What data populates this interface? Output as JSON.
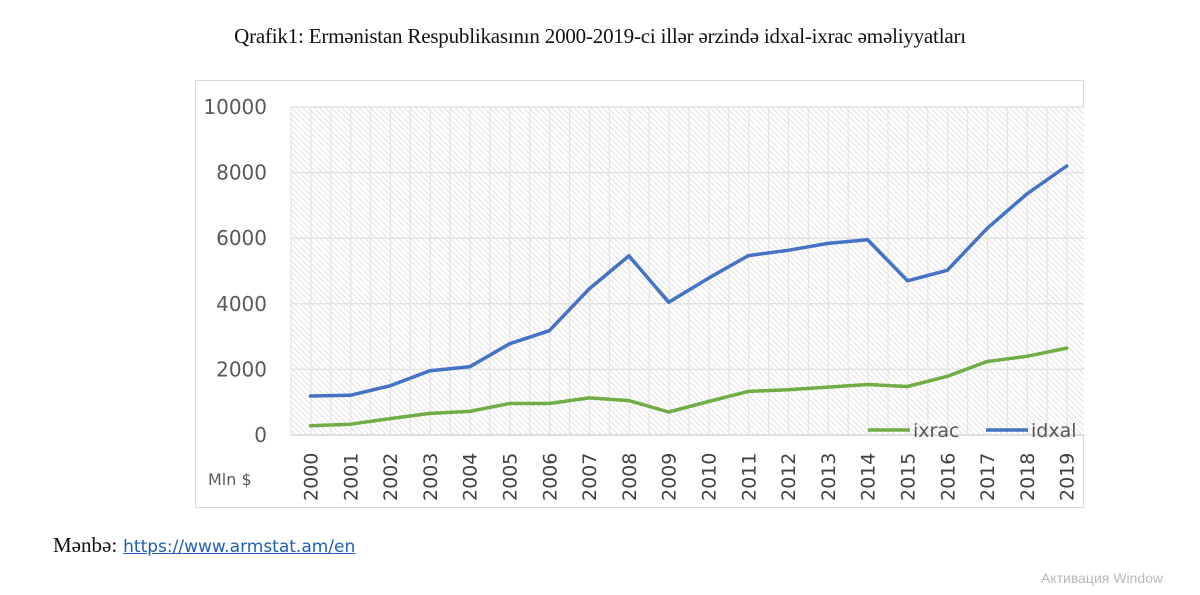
{
  "title": "Qrafik1: Ermənistan Respublikasının 2000-2019-ci illər ərzində idxal-ixrac əməliyyatları",
  "footer": {
    "source_label": "Mənbə:",
    "source_link": "https://www.armstat.am/en"
  },
  "watermark": "Активация Window",
  "chart_data": {
    "type": "line",
    "title": "Qrafik1: Ermənistan Respublikasının 2000-2019-ci illər ərzində idxal-ixrac əməliyyatları",
    "xlabel": "",
    "ylabel": "Mln $",
    "unit_label": "Mln $",
    "ylim": [
      0,
      10000
    ],
    "yticks": [
      0,
      2000,
      4000,
      6000,
      8000,
      10000
    ],
    "ytick_labels": [
      "0",
      "2000",
      "4000",
      "6000",
      "8000",
      "10000"
    ],
    "categories": [
      "2000",
      "2001",
      "2002",
      "2003",
      "2004",
      "2005",
      "2006",
      "2007",
      "2008",
      "2009",
      "2010",
      "2011",
      "2012",
      "2013",
      "2014",
      "2015",
      "2016",
      "2017",
      "2018",
      "2019"
    ],
    "grid": true,
    "legend_position": "bottom-right",
    "series": [
      {
        "name": "ixrac",
        "color": "#70ad47",
        "values": [
          280,
          330,
          500,
          660,
          720,
          960,
          960,
          1130,
          1050,
          700,
          1020,
          1330,
          1380,
          1460,
          1540,
          1480,
          1790,
          2240,
          2400,
          2650
        ]
      },
      {
        "name": "idxal",
        "color": "#4472c4",
        "values": [
          1190,
          1210,
          1500,
          1960,
          2080,
          2780,
          3180,
          4450,
          5460,
          4050,
          4780,
          5470,
          5630,
          5840,
          5950,
          4700,
          5020,
          6300,
          7350,
          8200
        ]
      }
    ]
  }
}
